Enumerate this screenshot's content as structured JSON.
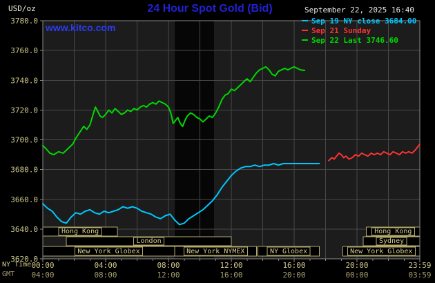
{
  "header": {
    "units_label": "USD/oz",
    "title": "24 Hour Spot Gold (Bid)",
    "datetime": "September 22, 2025 16:40",
    "watermark": "www.kitco.com",
    "legend": [
      {
        "label": "Sep 19 NY close 3684.00",
        "color": "#00c8ff"
      },
      {
        "label": "Sep 21 Sunday",
        "color": "#ff3232"
      },
      {
        "label": "Sep 22 Last 3746.60",
        "color": "#00d800"
      }
    ]
  },
  "axes": {
    "ny_time_label": "NY Time",
    "gmt_label": "GMT",
    "y_ticks": [
      3620,
      3640,
      3660,
      3680,
      3700,
      3720,
      3740,
      3760,
      3780
    ],
    "y_tick_labels": [
      "3620.0",
      "3640.0",
      "3660.0",
      "3680.0",
      "3700.0",
      "3720.0",
      "3740.0",
      "3760.0",
      "3780.0"
    ],
    "x_ticks": [
      {
        "hour": 0,
        "ny": "00:00",
        "gmt": "04:00"
      },
      {
        "hour": 4,
        "ny": "04:00",
        "gmt": "08:00"
      },
      {
        "hour": 8,
        "ny": "08:00",
        "gmt": "12:00"
      },
      {
        "hour": 12,
        "ny": "12:00",
        "gmt": "16:00"
      },
      {
        "hour": 16,
        "ny": "16:00",
        "gmt": "20:00"
      },
      {
        "hour": 20,
        "ny": "20:00",
        "gmt": "00:00"
      },
      {
        "hour": 24,
        "ny": "23:59",
        "gmt": "03:59"
      }
    ]
  },
  "sessions": {
    "rows": [
      {
        "boxes": [
          {
            "label": "Hong Kong",
            "start": 0,
            "end": 4.75
          },
          {
            "label": "Hong Kong",
            "start": 20.6,
            "end": 24
          }
        ]
      },
      {
        "boxes": [
          {
            "label": "London",
            "start": 1.5,
            "end": 12.0
          },
          {
            "label": "Sydney",
            "start": 20.4,
            "end": 24
          }
        ]
      },
      {
        "boxes": [
          {
            "label": "New York Globex",
            "start": 0,
            "end": 8.4
          },
          {
            "label": "New York NYMEX",
            "start": 8.4,
            "end": 13.6
          },
          {
            "label": "NY Globex",
            "start": 13.7,
            "end": 17.6
          },
          {
            "label": "New York Globex",
            "start": 19.1,
            "end": 24
          }
        ]
      }
    ]
  },
  "plot_shading": {
    "start": 8.4,
    "end": 10.9
  },
  "colors": {
    "background": "#000000",
    "plot_bg": "#1c1c1c",
    "band": "#060606",
    "grid": "#494949",
    "frame": "#8a8a8a",
    "axis_text": "#d2c98c",
    "gmt_text": "#a79f72",
    "session_border": "#b3aa6b",
    "session_text": "#d6cd92",
    "title": "#2121d6",
    "watermark": "#2b3cf0",
    "date_text": "#e9e9e9",
    "units_text": "#eeeedd"
  },
  "chart_data": {
    "type": "line",
    "title": "24 Hour Spot Gold (Bid)",
    "xlabel": "NY Time (hours, 00:00-23:59)",
    "ylabel": "USD/oz",
    "xlim": [
      0,
      24
    ],
    "ylim": [
      3620,
      3780
    ],
    "grid": true,
    "legend_position": "top-right",
    "series": [
      {
        "name": "Sep 19 NY close",
        "color": "#00c8ff",
        "close": 3684.0,
        "points": [
          [
            0,
            3657
          ],
          [
            0.3,
            3654
          ],
          [
            0.6,
            3652
          ],
          [
            0.9,
            3648
          ],
          [
            1.2,
            3645
          ],
          [
            1.5,
            3644
          ],
          [
            1.8,
            3648
          ],
          [
            2.1,
            3651
          ],
          [
            2.4,
            3650
          ],
          [
            2.7,
            3652
          ],
          [
            3.0,
            3653
          ],
          [
            3.3,
            3651
          ],
          [
            3.6,
            3650
          ],
          [
            3.9,
            3652
          ],
          [
            4.2,
            3651
          ],
          [
            4.5,
            3652
          ],
          [
            4.8,
            3653
          ],
          [
            5.1,
            3655
          ],
          [
            5.4,
            3654
          ],
          [
            5.7,
            3655
          ],
          [
            6.0,
            3654
          ],
          [
            6.3,
            3652
          ],
          [
            6.6,
            3651
          ],
          [
            6.9,
            3650
          ],
          [
            7.2,
            3648
          ],
          [
            7.5,
            3647
          ],
          [
            7.8,
            3649
          ],
          [
            8.1,
            3650
          ],
          [
            8.4,
            3646
          ],
          [
            8.7,
            3643
          ],
          [
            9.0,
            3644
          ],
          [
            9.3,
            3647
          ],
          [
            9.6,
            3649
          ],
          [
            9.9,
            3651
          ],
          [
            10.2,
            3653
          ],
          [
            10.5,
            3656
          ],
          [
            10.8,
            3659
          ],
          [
            11.1,
            3663
          ],
          [
            11.4,
            3668
          ],
          [
            11.7,
            3672
          ],
          [
            12.0,
            3676
          ],
          [
            12.3,
            3679
          ],
          [
            12.6,
            3681
          ],
          [
            12.9,
            3682
          ],
          [
            13.2,
            3682
          ],
          [
            13.5,
            3683
          ],
          [
            13.8,
            3682
          ],
          [
            14.1,
            3683
          ],
          [
            14.4,
            3683
          ],
          [
            14.7,
            3684
          ],
          [
            15.0,
            3683
          ],
          [
            15.3,
            3684
          ],
          [
            15.6,
            3684
          ],
          [
            15.9,
            3684
          ],
          [
            16.2,
            3684
          ],
          [
            16.5,
            3684
          ],
          [
            16.8,
            3684
          ],
          [
            17.2,
            3684
          ],
          [
            17.6,
            3684
          ]
        ]
      },
      {
        "name": "Sep 21 Sunday",
        "color": "#ff3232",
        "points": [
          [
            18.2,
            3686
          ],
          [
            18.4,
            3688
          ],
          [
            18.55,
            3687
          ],
          [
            18.7,
            3689
          ],
          [
            18.85,
            3691
          ],
          [
            19.0,
            3690
          ],
          [
            19.15,
            3688
          ],
          [
            19.3,
            3689
          ],
          [
            19.5,
            3687
          ],
          [
            19.7,
            3688
          ],
          [
            19.9,
            3690
          ],
          [
            20.1,
            3689
          ],
          [
            20.3,
            3691
          ],
          [
            20.5,
            3690
          ],
          [
            20.7,
            3689
          ],
          [
            20.9,
            3691
          ],
          [
            21.1,
            3690
          ],
          [
            21.3,
            3691
          ],
          [
            21.5,
            3690
          ],
          [
            21.7,
            3692
          ],
          [
            21.9,
            3691
          ],
          [
            22.1,
            3690
          ],
          [
            22.3,
            3692
          ],
          [
            22.5,
            3691
          ],
          [
            22.7,
            3690
          ],
          [
            22.9,
            3692
          ],
          [
            23.1,
            3691
          ],
          [
            23.3,
            3692
          ],
          [
            23.5,
            3691
          ],
          [
            23.7,
            3693
          ],
          [
            23.85,
            3695
          ],
          [
            24,
            3697
          ]
        ]
      },
      {
        "name": "Sep 22 Last",
        "color": "#00d800",
        "last": 3746.6,
        "points": [
          [
            0,
            3696
          ],
          [
            0.2,
            3694
          ],
          [
            0.45,
            3691
          ],
          [
            0.7,
            3690
          ],
          [
            1.0,
            3692
          ],
          [
            1.3,
            3691
          ],
          [
            1.6,
            3694
          ],
          [
            1.9,
            3697
          ],
          [
            2.1,
            3701
          ],
          [
            2.35,
            3705
          ],
          [
            2.6,
            3709
          ],
          [
            2.8,
            3707
          ],
          [
            3.0,
            3710
          ],
          [
            3.2,
            3717
          ],
          [
            3.35,
            3722
          ],
          [
            3.5,
            3719
          ],
          [
            3.65,
            3716
          ],
          [
            3.8,
            3715
          ],
          [
            4.0,
            3717
          ],
          [
            4.2,
            3720
          ],
          [
            4.4,
            3718
          ],
          [
            4.6,
            3721
          ],
          [
            4.8,
            3719
          ],
          [
            5.0,
            3717
          ],
          [
            5.2,
            3718
          ],
          [
            5.4,
            3720
          ],
          [
            5.6,
            3719
          ],
          [
            5.8,
            3721
          ],
          [
            6.0,
            3720
          ],
          [
            6.2,
            3722
          ],
          [
            6.4,
            3723
          ],
          [
            6.6,
            3722
          ],
          [
            6.8,
            3724
          ],
          [
            7.0,
            3725
          ],
          [
            7.2,
            3724
          ],
          [
            7.4,
            3726
          ],
          [
            7.6,
            3725
          ],
          [
            7.8,
            3724
          ],
          [
            8.0,
            3722
          ],
          [
            8.15,
            3718
          ],
          [
            8.3,
            3711
          ],
          [
            8.45,
            3713
          ],
          [
            8.6,
            3715
          ],
          [
            8.75,
            3711
          ],
          [
            8.9,
            3709
          ],
          [
            9.05,
            3713
          ],
          [
            9.2,
            3716
          ],
          [
            9.4,
            3718
          ],
          [
            9.6,
            3717
          ],
          [
            9.8,
            3715
          ],
          [
            10.0,
            3714
          ],
          [
            10.2,
            3712
          ],
          [
            10.4,
            3714
          ],
          [
            10.6,
            3716
          ],
          [
            10.8,
            3715
          ],
          [
            11.0,
            3718
          ],
          [
            11.2,
            3722
          ],
          [
            11.4,
            3727
          ],
          [
            11.6,
            3730
          ],
          [
            11.8,
            3731
          ],
          [
            12.0,
            3734
          ],
          [
            12.2,
            3733
          ],
          [
            12.4,
            3735
          ],
          [
            12.6,
            3737
          ],
          [
            12.8,
            3739
          ],
          [
            13.0,
            3741
          ],
          [
            13.2,
            3739
          ],
          [
            13.4,
            3742
          ],
          [
            13.6,
            3745
          ],
          [
            13.8,
            3747
          ],
          [
            14.0,
            3748
          ],
          [
            14.2,
            3749
          ],
          [
            14.4,
            3747
          ],
          [
            14.6,
            3744
          ],
          [
            14.8,
            3743
          ],
          [
            15.0,
            3746
          ],
          [
            15.2,
            3747
          ],
          [
            15.4,
            3748
          ],
          [
            15.6,
            3747
          ],
          [
            15.8,
            3748
          ],
          [
            16.0,
            3749
          ],
          [
            16.2,
            3748
          ],
          [
            16.4,
            3747
          ],
          [
            16.67,
            3746.6
          ]
        ]
      }
    ]
  }
}
